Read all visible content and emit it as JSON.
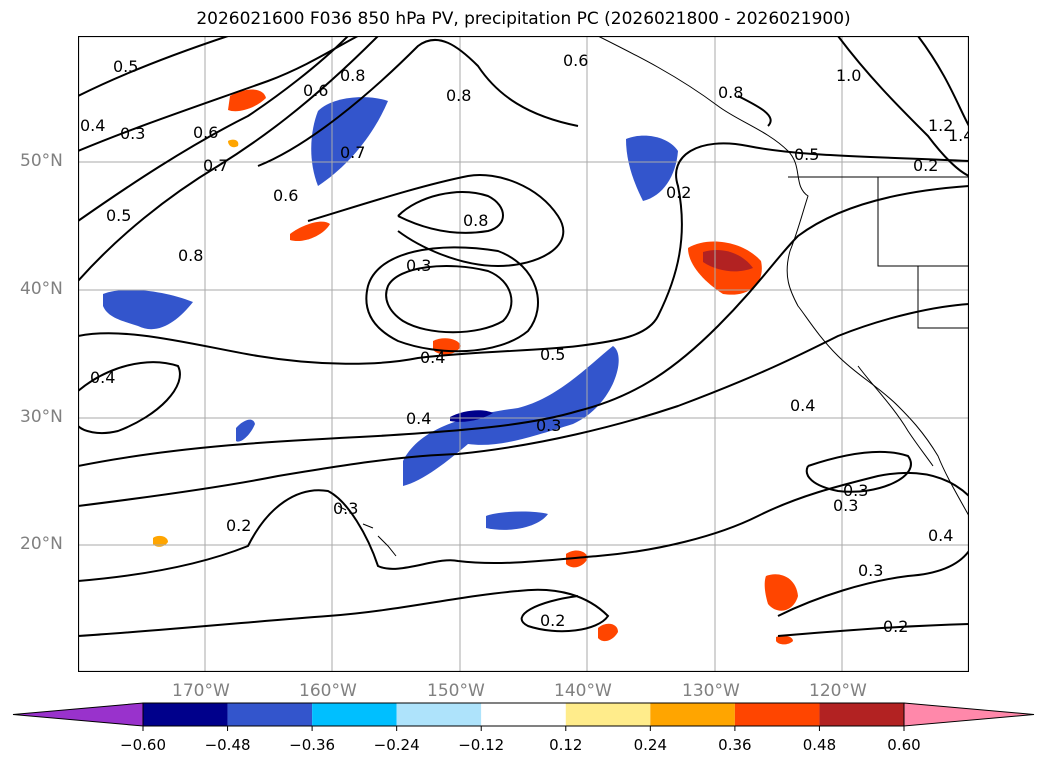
{
  "title": "2026021600 F036 850 hPa PV, precipitation PC (2026021800 - 2026021900)",
  "lat_labels": [
    "50°N",
    "40°N",
    "30°N",
    "20°N"
  ],
  "lon_labels": [
    "170°W",
    "160°W",
    "150°W",
    "140°W",
    "130°W",
    "120°W"
  ],
  "contour_labels": [
    "0.5",
    "0.3",
    "0.4",
    "0.7",
    "0.5",
    "0.8",
    "0.6",
    "0.6",
    "0.8",
    "0.6",
    "0.8",
    "0.7",
    "0.8",
    "0.6",
    "0.2",
    "0.8",
    "0.5",
    "1.0",
    "1.2",
    "1.4",
    "0.3",
    "0.4",
    "0.4",
    "0.5",
    "0.4",
    "0.3",
    "0.4",
    "0.3",
    "0.3",
    "0.2",
    "0.2",
    "0.3",
    "0.4",
    "0.3",
    "0.2",
    "0.2"
  ],
  "colorbar": {
    "ticks": [
      "−0.60",
      "−0.48",
      "−0.36",
      "−0.24",
      "−0.12",
      "0.12",
      "0.24",
      "0.36",
      "0.48",
      "0.60"
    ],
    "colors": [
      "#9932cc",
      "#00008b",
      "#3355cc",
      "#00bfff",
      "#aee3fb",
      "#ffffff",
      "#ffec8b",
      "#ffa500",
      "#ff4500",
      "#b22222",
      "#ff88aa"
    ]
  }
}
